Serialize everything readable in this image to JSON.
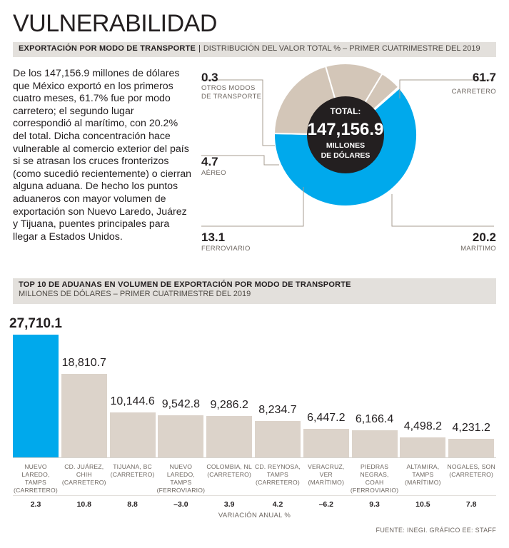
{
  "title": "VULNERABILIDAD",
  "section1": {
    "heading_bold": "EXPORTACIÓN POR MODO DE TRANSPORTE",
    "separator": "|",
    "heading_light": "DISTRIBUCIÓN DEL VALOR TOTAL % – PRIMER CUATRIMESTRE DEL 2019"
  },
  "intro_text": "De los 147,156.9 millones de dólares que México exportó en los primeros cuatro meses, 61.7% fue por modo carretero; el segundo lugar correspondió al marítimo, con 20.2% del total. Dicha concentración hace vulnerable al comercio exterior del país si se atrasan los cruces fronterizos (como sucedió recientemente) o cierran alguna aduana. De hecho los puntos aduaneros con mayor volumen de exportación son Nuevo Laredo, Juárez y Tijuana, puentes principales para llegar a Estados Unidos.",
  "donut_center": {
    "line1": "TOTAL:",
    "line2": "147,156.9",
    "line3": "MILLONES",
    "line4": "DE DÓLARES"
  },
  "section2": {
    "heading": "TOP 10 DE ADUANAS EN VOLUMEN DE EXPORTACIÓN POR MODO DE TRANSPORTE",
    "subheading": "MILLONES DE DÓLARES – PRIMER CUATRIMESTRE DEL 2019"
  },
  "variation_label": "VARIACIÓN ANUAL %",
  "source": "FUENTE: INEGI. GRÁFICO EE: STAFF",
  "colors": {
    "accent": "#00a9ec",
    "bar": "#dcd3ca",
    "donut_gray": "#d3c6b8",
    "band": "#e3e0dc"
  },
  "chart_data": [
    {
      "type": "pie",
      "title": "EXPORTACIÓN POR MODO DE TRANSPORTE",
      "subtitle": "DISTRIBUCIÓN DEL VALOR TOTAL % – PRIMER CUATRIMESTRE DEL 2019",
      "slices": [
        {
          "name": "CARRETERO",
          "label": "61.7",
          "value": 61.7
        },
        {
          "name": "MARÍTIMO",
          "label": "20.2",
          "value": 20.2
        },
        {
          "name": "FERROVIARIO",
          "label": "13.1",
          "value": 13.1
        },
        {
          "name": "AÉREO",
          "label": "4.7",
          "value": 4.7
        },
        {
          "name": "OTROS MODOS DE TRANSPORTE",
          "label": "0.3",
          "value": 0.3
        }
      ]
    },
    {
      "type": "bar",
      "title": "TOP 10 DE ADUANAS EN VOLUMEN DE EXPORTACIÓN POR MODO DE TRANSPORTE",
      "ylabel": "MILLONES DE DÓLARES",
      "categories": [
        "NUEVO LAREDO, TAMPS (CARRETERO)",
        "CD. JUÁREZ, CHIH (CARRETERO)",
        "TIJUANA, BC (CARRETERO)",
        "NUEVO LAREDO, TAMPS (FERROVIARIO)",
        "COLOMBIA, NL (CARRETERO)",
        "CD. REYNOSA, TAMPS (CARRETERO)",
        "VERACRUZ, VER (MARÍTIMO)",
        "PIEDRAS NEGRAS, COAH (FERROVIARIO)",
        "ALTAMIRA, TAMPS (MARÍTIMO)",
        "NOGALES, SON (CARRETERO)"
      ],
      "name_lines": [
        [
          "NUEVO LAREDO,",
          "TAMPS",
          "(CARRETERO)"
        ],
        [
          "CD. JUÁREZ,",
          "CHIH",
          "(CARRETERO)"
        ],
        [
          "TIJUANA, BC",
          "(CARRETERO)"
        ],
        [
          "NUEVO LAREDO,",
          "TAMPS",
          "(FERROVIARIO)"
        ],
        [
          "COLOMBIA, NL",
          "(CARRETERO)"
        ],
        [
          "CD. REYNOSA,",
          "TAMPS",
          "(CARRETERO)"
        ],
        [
          "VERACRUZ, VER",
          "(MARÍTIMO)"
        ],
        [
          "PIEDRAS",
          "NEGRAS, COAH",
          "(FERROVIARIO)"
        ],
        [
          "ALTAMIRA,",
          "TAMPS",
          "(MARÍTIMO)"
        ],
        [
          "NOGALES, SON",
          "(CARRETERO)"
        ]
      ],
      "values": [
        27710.1,
        18810.7,
        10144.6,
        9542.8,
        9286.2,
        8234.7,
        6447.2,
        6166.4,
        4498.2,
        4231.2
      ],
      "value_labels": [
        "27,710.1",
        "18,810.7",
        "10,144.6",
        "9,542.8",
        "9,286.2",
        "8,234.7",
        "6,447.2",
        "6,166.4",
        "4,498.2",
        "4,231.2"
      ],
      "annual_variation": [
        2.3,
        10.8,
        8.8,
        -3.0,
        3.9,
        4.2,
        -6.2,
        9.3,
        10.5,
        7.8
      ],
      "variation_labels": [
        "2.3",
        "10.8",
        "8.8",
        "–3.0",
        "3.9",
        "4.2",
        "–6.2",
        "9.3",
        "10.5",
        "7.8"
      ],
      "ylim": [
        0,
        27710.1
      ]
    }
  ]
}
